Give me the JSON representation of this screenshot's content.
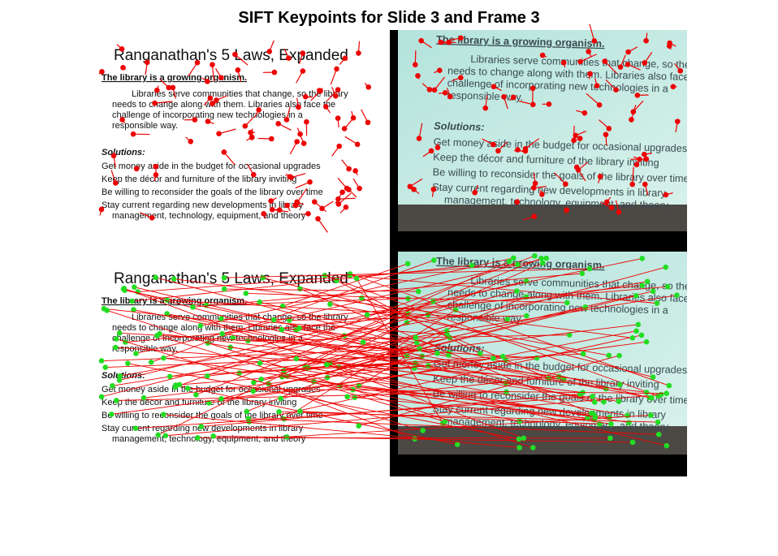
{
  "title": "SIFT Keypoints for Slide 3 and Frame 3",
  "slide": {
    "heading": "Ranganathan's 5 Laws, Expanded",
    "subheading": "The library is a growing organism.",
    "paragraph": [
      "Libraries serve communities that change, so the library",
      "needs to change along with them. Libraries also face the",
      "challenge of incorporating new technologies in a",
      "responsible way."
    ],
    "solutions_label": "Solutions:",
    "solutions": [
      "Get money aside in the budget for occasional upgrades",
      "Keep the décor and furniture of the library inviting",
      "Be willing to reconsider the goals of the library over time",
      "Stay current regarding new developments in library",
      "management, technology, equipment, and theory"
    ]
  }
}
